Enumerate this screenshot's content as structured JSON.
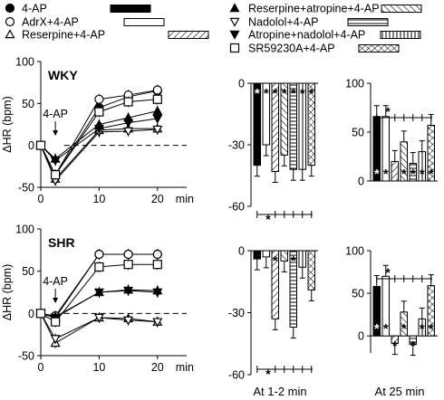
{
  "legend": [
    {
      "label": "4-AP",
      "marker": "filled-circle",
      "bar": "black"
    },
    {
      "label": "AdrX+4-AP",
      "marker": "open-circle",
      "bar": "white"
    },
    {
      "label": "Reserpine+4-AP",
      "marker": "open-triangle-up",
      "bar": "diag-right"
    },
    {
      "label": "Reserpine+atropine+4-AP",
      "marker": "filled-triangle-up",
      "bar": "diag-left"
    },
    {
      "label": "Nadolol+4-AP",
      "marker": "open-triangle-down",
      "bar": "horizontal"
    },
    {
      "label": "Atropine+nadolol+4-AP",
      "marker": "filled-triangle-down",
      "bar": "vertical"
    },
    {
      "label": "SR59230A+4-AP",
      "marker": "open-square",
      "bar": "crosshatch"
    }
  ],
  "colors": {
    "ink": "#000000",
    "background": "#ffffff"
  },
  "chart_data": [
    {
      "panel": "WKY time course",
      "type": "line",
      "title": "WKY",
      "annotation": "4-AP",
      "ylabel": "ΔHR (bpm)",
      "xlabel": "",
      "xticks": [
        "0",
        "10",
        "20",
        "min"
      ],
      "ylim": [
        -50,
        100
      ],
      "yticks": [
        -50,
        0,
        50,
        100
      ],
      "x": [
        0,
        2.5,
        10,
        15,
        20
      ],
      "series": [
        {
          "name": "4-AP",
          "values": [
            0,
            -35,
            45,
            58,
            65
          ]
        },
        {
          "name": "AdrX+4-AP",
          "values": [
            0,
            -35,
            55,
            60,
            66
          ]
        },
        {
          "name": "Reserpine+4-AP",
          "values": [
            0,
            -40,
            18,
            20,
            20
          ]
        },
        {
          "name": "Reserpine+atropine+4-AP",
          "values": [
            0,
            -16,
            25,
            33,
            41
          ]
        },
        {
          "name": "Nadolol+4-AP",
          "values": [
            0,
            -42,
            16,
            17,
            19
          ]
        },
        {
          "name": "Atropine+nadolol+4-AP",
          "values": [
            0,
            -18,
            20,
            27,
            32
          ]
        },
        {
          "name": "SR59230A+4-AP",
          "values": [
            0,
            -35,
            40,
            52,
            55
          ]
        }
      ]
    },
    {
      "panel": "SHR time course",
      "type": "line",
      "title": "SHR",
      "annotation": "4-AP",
      "ylabel": "ΔHR (bpm)",
      "xlabel": "",
      "xticks": [
        "0",
        "10",
        "20",
        "min"
      ],
      "ylim": [
        -50,
        100
      ],
      "yticks": [
        -50,
        0,
        50,
        100
      ],
      "x": [
        0,
        2.5,
        10,
        15,
        20
      ],
      "series": [
        {
          "name": "4-AP",
          "values": [
            0,
            -5,
            70,
            70,
            70
          ]
        },
        {
          "name": "AdrX+4-AP",
          "values": [
            0,
            -3,
            70,
            70,
            70
          ]
        },
        {
          "name": "Reserpine+4-AP",
          "values": [
            0,
            -35,
            -5,
            -6,
            -10
          ]
        },
        {
          "name": "Reserpine+atropine+4-AP",
          "values": [
            0,
            -4,
            25,
            28,
            27
          ]
        },
        {
          "name": "Nadolol+4-AP",
          "values": [
            0,
            -30,
            -5,
            -8,
            -10
          ]
        },
        {
          "name": "Atropine+nadolol+4-AP",
          "values": [
            0,
            -5,
            25,
            27,
            25
          ]
        },
        {
          "name": "SR59230A+4-AP",
          "values": [
            0,
            -10,
            55,
            58,
            58
          ]
        }
      ]
    },
    {
      "panel": "WKY 1-2 min",
      "type": "bar",
      "categories": [
        "4-AP",
        "AdrX+4-AP",
        "Reserpine+4-AP",
        "Reserpine+atropine+4-AP",
        "Nadolol+4-AP",
        "Atropine+nadolol+4-AP",
        "SR59230A+4-AP"
      ],
      "values": [
        -40,
        -30,
        -43,
        -35,
        -42,
        -42,
        -40
      ],
      "ylim": [
        -60,
        0
      ],
      "yticks": [
        -60,
        -30,
        0
      ],
      "marks": [
        "*",
        "*",
        "*",
        "*",
        "*",
        "*",
        "*"
      ]
    },
    {
      "panel": "WKY 25 min",
      "type": "bar",
      "categories": [
        "4-AP",
        "AdrX+4-AP",
        "Reserpine+4-AP",
        "Reserpine+atropine+4-AP",
        "Nadolol+4-AP",
        "Atropine+nadolol+4-AP",
        "SR59230A+4-AP"
      ],
      "values": [
        66,
        66,
        20,
        40,
        18,
        30,
        57
      ],
      "ylim": [
        0,
        100
      ],
      "yticks": [
        0,
        50,
        100
      ],
      "marks": [
        "*",
        "*",
        "",
        "*",
        "*",
        "*",
        "*"
      ]
    },
    {
      "panel": "SHR 1-2 min",
      "type": "bar",
      "categories": [
        "4-AP",
        "AdrX+4-AP",
        "Reserpine+4-AP",
        "Reserpine+atropine+4-AP",
        "Nadolol+4-AP",
        "Atropine+nadolol+4-AP",
        "SR59230A+4-AP"
      ],
      "values": [
        -4,
        -3,
        -33,
        -5,
        -37,
        -8,
        -19
      ],
      "ylim": [
        -60,
        0
      ],
      "yticks": [
        -60,
        -30,
        0
      ],
      "marks": [
        "",
        "",
        "*",
        "",
        "*",
        "",
        ""
      ]
    },
    {
      "panel": "SHR 25 min",
      "type": "bar",
      "categories": [
        "4-AP",
        "AdrX+4-AP",
        "Reserpine+4-AP",
        "Reserpine+atropine+4-AP",
        "Nadolol+4-AP",
        "Atropine+nadolol+4-AP",
        "SR59230A+4-AP"
      ],
      "values": [
        58,
        70,
        -9,
        28,
        -10,
        20,
        59
      ],
      "ylim": [
        -20,
        100
      ],
      "yticks": [
        0,
        50,
        100
      ],
      "marks": [
        "*",
        "*",
        "*",
        "*",
        "*",
        "*",
        "*"
      ]
    }
  ],
  "bottom_labels": {
    "early": "At 1-2 min",
    "late": "At 25 min"
  },
  "star": "*"
}
